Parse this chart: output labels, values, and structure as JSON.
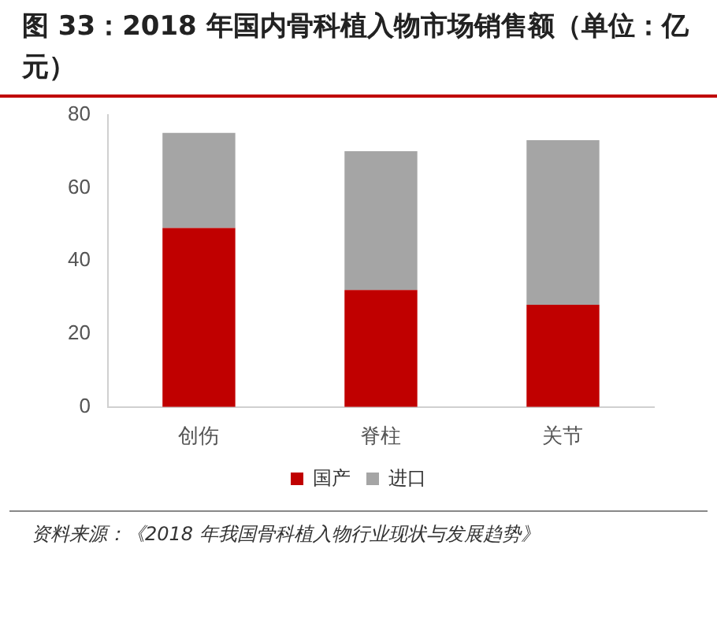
{
  "chart_data": {
    "type": "bar",
    "title": "图 33：2018 年国内骨科植入物市场销售额（单位：亿元）",
    "categories": [
      "创伤",
      "脊柱",
      "关节"
    ],
    "series": [
      {
        "name": "国产",
        "color": "#c00000",
        "values": [
          49,
          32,
          28
        ]
      },
      {
        "name": "进口",
        "color": "#a5a5a5",
        "values": [
          26,
          38,
          45
        ]
      }
    ],
    "stacked": true,
    "ylim": [
      0,
      80
    ],
    "yticks": [
      0,
      20,
      40,
      60,
      80
    ],
    "grid": false,
    "legend": "bottom",
    "annotations": [
      "资料来源：《2018 年我国骨科植入物行业现状与发展趋势》"
    ]
  }
}
